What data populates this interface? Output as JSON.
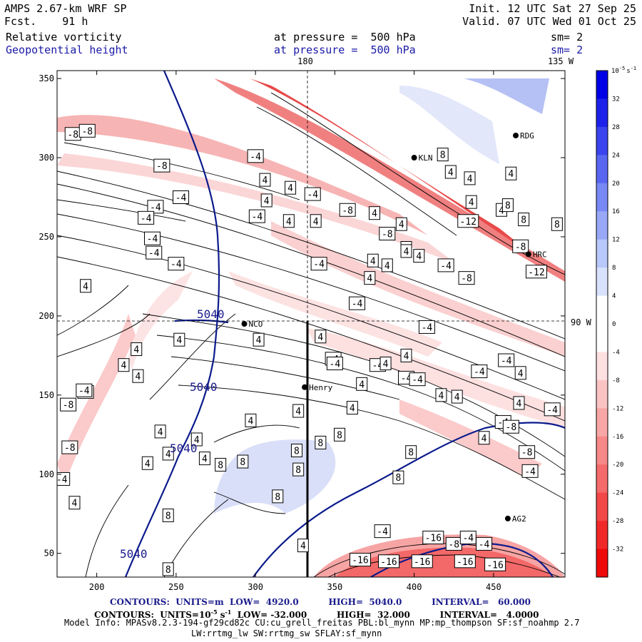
{
  "header": {
    "model": "AMPS 2.67-km WRF SP",
    "fcst_label": "Fcst.",
    "fcst_value": "91 h",
    "init": "Init. 12 UTC Sat 27 Sep 25",
    "valid": "Valid. 07 UTC Wed 01 Oct 25",
    "field1": "Relative vorticity",
    "field2": "Geopotential height",
    "pressure1": "at pressure =  500 hPa",
    "pressure2": "at pressure =  500 hPa",
    "sm1": "sm= 2",
    "sm2": "sm= 2",
    "lon_top1": "180",
    "lon_top2": "135 W",
    "lon_right": "90 W"
  },
  "footer": {
    "line1": "CONTOURS:  UNITS=m  LOW=  4920.0          HIGH=  5040.0          INTERVAL=   60.000",
    "line2": "CONTOURS:  UNITS=10",
    "line2_exp": "-5",
    "line2_s": " s",
    "line2_sexp": "-1",
    "line2_rest": "  LOW= -32.000          HIGH=  32.000          INTERVAL=   4.0000",
    "line3": "Model Info: MPASv8.2.3-194-gf29cd82c CU:cu_grell_freitas PBL:bl_mynn MP:mp_thompson SF:sf_noahmp 2.7",
    "line4": "LW:rrtmg_lw SW:rrtmg_sw SFLAY:sf_mynn"
  },
  "colorbar": {
    "unit_label": "10",
    "unit_exp": "-5",
    "unit_s": "s",
    "unit_sexp": "-1",
    "labels": [
      "32",
      "28",
      "24",
      "20",
      "16",
      "12",
      "8",
      "4",
      "0",
      "-4",
      "-8",
      "-12",
      "-16",
      "-20",
      "-24",
      "-28",
      "-32"
    ],
    "colors": [
      "#0000e6",
      "#1c22ea",
      "#3a44ee",
      "#5866f1",
      "#7888f4",
      "#98a8f7",
      "#b8c8fa",
      "#d8e2fc",
      "#ffffff",
      "#ffffff",
      "#fde0e0",
      "#fbc4c4",
      "#f9a6a6",
      "#f78888",
      "#f56a6a",
      "#f34848",
      "#f12828",
      "#ef0a0a"
    ]
  },
  "chart_data": {
    "type": "contour_map",
    "title": "Relative vorticity / Geopotential height at 500 hPa",
    "xlabel": "",
    "ylabel": "",
    "xlim": [
      175,
      495
    ],
    "ylim": [
      35,
      355
    ],
    "xticks": [
      200,
      250,
      300,
      350,
      400,
      450
    ],
    "yticks": [
      50,
      100,
      150,
      200,
      250,
      300,
      350
    ],
    "height_contour_labels": [
      "5040",
      "5040",
      "5040",
      "5040"
    ],
    "vorticity_labels": [
      {
        "x": 185,
        "y": 315,
        "t": "-8"
      },
      {
        "x": 194,
        "y": 317,
        "t": "-8"
      },
      {
        "x": 241,
        "y": 295,
        "t": "-8"
      },
      {
        "x": 253,
        "y": 275,
        "t": "-4"
      },
      {
        "x": 300,
        "y": 301,
        "t": "-4"
      },
      {
        "x": 306,
        "y": 286,
        "t": "4"
      },
      {
        "x": 307,
        "y": 273,
        "t": "4"
      },
      {
        "x": 301,
        "y": 263,
        "t": "-4"
      },
      {
        "x": 237,
        "y": 269,
        "t": "-4"
      },
      {
        "x": 231,
        "y": 262,
        "t": "-4"
      },
      {
        "x": 250,
        "y": 233,
        "t": "-4"
      },
      {
        "x": 193,
        "y": 219,
        "t": "4"
      },
      {
        "x": 235,
        "y": 249,
        "t": "-4"
      },
      {
        "x": 236,
        "y": 240,
        "t": "-4"
      },
      {
        "x": 322,
        "y": 281,
        "t": "4"
      },
      {
        "x": 321,
        "y": 260,
        "t": "4"
      },
      {
        "x": 336,
        "y": 277,
        "t": "-4"
      },
      {
        "x": 338,
        "y": 260,
        "t": "4"
      },
      {
        "x": 358,
        "y": 267,
        "t": "-8"
      },
      {
        "x": 375,
        "y": 265,
        "t": "4"
      },
      {
        "x": 392,
        "y": 258,
        "t": "4"
      },
      {
        "x": 383,
        "y": 252,
        "t": "-8"
      },
      {
        "x": 395,
        "y": 243,
        "t": "4"
      },
      {
        "x": 418,
        "y": 302,
        "t": "8"
      },
      {
        "x": 423,
        "y": 291,
        "t": "4"
      },
      {
        "x": 435,
        "y": 287,
        "t": "4"
      },
      {
        "x": 436,
        "y": 272,
        "t": "4"
      },
      {
        "x": 434,
        "y": 260,
        "t": "-12"
      },
      {
        "x": 455,
        "y": 267,
        "t": "4"
      },
      {
        "x": 459,
        "y": 270,
        "t": "8"
      },
      {
        "x": 461,
        "y": 290,
        "t": "4"
      },
      {
        "x": 469,
        "y": 261,
        "t": "8"
      },
      {
        "x": 490,
        "y": 258,
        "t": "8"
      },
      {
        "x": 467,
        "y": 244,
        "t": "-8"
      },
      {
        "x": 477,
        "y": 228,
        "t": "-12"
      },
      {
        "x": 420,
        "y": 232,
        "t": "-4"
      },
      {
        "x": 433,
        "y": 224,
        "t": "-8"
      },
      {
        "x": 340,
        "y": 233,
        "t": "-4"
      },
      {
        "x": 364,
        "y": 208,
        "t": "-4"
      },
      {
        "x": 374,
        "y": 235,
        "t": "4"
      },
      {
        "x": 372,
        "y": 224,
        "t": "4"
      },
      {
        "x": 383,
        "y": 232,
        "t": "4"
      },
      {
        "x": 395,
        "y": 241,
        "t": "4"
      },
      {
        "x": 403,
        "y": 238,
        "t": "4"
      },
      {
        "x": 408,
        "y": 193,
        "t": "-4"
      },
      {
        "x": 377,
        "y": 169,
        "t": "-4"
      },
      {
        "x": 395,
        "y": 161,
        "t": "-4"
      },
      {
        "x": 402,
        "y": 160,
        "t": "-4"
      },
      {
        "x": 395,
        "y": 175,
        "t": "4"
      },
      {
        "x": 349,
        "y": 173,
        "t": "-4"
      },
      {
        "x": 382,
        "y": 170,
        "t": "4"
      },
      {
        "x": 367,
        "y": 157,
        "t": "4"
      },
      {
        "x": 350,
        "y": 170,
        "t": "-4"
      },
      {
        "x": 341,
        "y": 120,
        "t": "8"
      },
      {
        "x": 302,
        "y": 185,
        "t": "4"
      },
      {
        "x": 297,
        "y": 134,
        "t": "4"
      },
      {
        "x": 327,
        "y": 140,
        "t": "4"
      },
      {
        "x": 341,
        "y": 187,
        "t": "4"
      },
      {
        "x": 361,
        "y": 142,
        "t": "4"
      },
      {
        "x": 353,
        "y": 125,
        "t": "8"
      },
      {
        "x": 417,
        "y": 150,
        "t": "4"
      },
      {
        "x": 441,
        "y": 165,
        "t": "-4"
      },
      {
        "x": 458,
        "y": 172,
        "t": "-4"
      },
      {
        "x": 467,
        "y": 164,
        "t": "4"
      },
      {
        "x": 427,
        "y": 149,
        "t": "4"
      },
      {
        "x": 456,
        "y": 133,
        "t": "-4"
      },
      {
        "x": 466,
        "y": 145,
        "t": "4"
      },
      {
        "x": 487,
        "y": 141,
        "t": "-4"
      },
      {
        "x": 461,
        "y": 130,
        "t": "-8"
      },
      {
        "x": 471,
        "y": 114,
        "t": "-8"
      },
      {
        "x": 473,
        "y": 102,
        "t": "-4"
      },
      {
        "x": 444,
        "y": 123,
        "t": "4"
      },
      {
        "x": 398,
        "y": 114,
        "t": "8"
      },
      {
        "x": 390,
        "y": 98,
        "t": "8"
      },
      {
        "x": 252,
        "y": 185,
        "t": "4"
      },
      {
        "x": 225,
        "y": 179,
        "t": "4"
      },
      {
        "x": 217,
        "y": 169,
        "t": "4"
      },
      {
        "x": 193,
        "y": 152,
        "t": "-4"
      },
      {
        "x": 182,
        "y": 144,
        "t": "-8"
      },
      {
        "x": 183,
        "y": 117,
        "t": "-8"
      },
      {
        "x": 192,
        "y": 153,
        "t": "-4"
      },
      {
        "x": 226,
        "y": 162,
        "t": "4"
      },
      {
        "x": 240,
        "y": 127,
        "t": "4"
      },
      {
        "x": 245,
        "y": 113,
        "t": "4"
      },
      {
        "x": 263,
        "y": 122,
        "t": "4"
      },
      {
        "x": 268,
        "y": 110,
        "t": "4"
      },
      {
        "x": 278,
        "y": 106,
        "t": "8"
      },
      {
        "x": 292,
        "y": 108,
        "t": "8"
      },
      {
        "x": 326,
        "y": 115,
        "t": "8"
      },
      {
        "x": 327,
        "y": 103,
        "t": "8"
      },
      {
        "x": 314,
        "y": 86,
        "t": "8"
      },
      {
        "x": 178,
        "y": 97,
        "t": "-4"
      },
      {
        "x": 186,
        "y": 82,
        "t": "4"
      },
      {
        "x": 232,
        "y": 107,
        "t": "4"
      },
      {
        "x": 245,
        "y": 74,
        "t": "8"
      },
      {
        "x": 245,
        "y": 40,
        "t": "8"
      },
      {
        "x": 330,
        "y": 55,
        "t": "4"
      },
      {
        "x": 366,
        "y": 46,
        "t": "-16"
      },
      {
        "x": 380,
        "y": 64,
        "t": "-4"
      },
      {
        "x": 384,
        "y": 45,
        "t": "-16"
      },
      {
        "x": 405,
        "y": 45,
        "t": "-16"
      },
      {
        "x": 412,
        "y": 60,
        "t": "-16"
      },
      {
        "x": 425,
        "y": 56,
        "t": "-8"
      },
      {
        "x": 434,
        "y": 60,
        "t": "-4"
      },
      {
        "x": 444,
        "y": 56,
        "t": "-4"
      },
      {
        "x": 451,
        "y": 43,
        "t": "-16"
      },
      {
        "x": 432,
        "y": 45,
        "t": "-16"
      }
    ],
    "stations": [
      {
        "name": "NCO",
        "x": 293,
        "y": 195
      },
      {
        "name": "Henry",
        "x": 331,
        "y": 155
      },
      {
        "name": "KLN",
        "x": 400,
        "y": 300
      },
      {
        "name": "RDG",
        "x": 464,
        "y": 314
      },
      {
        "name": "HRC",
        "x": 472,
        "y": 239
      },
      {
        "name": "AG2",
        "x": 459,
        "y": 72
      }
    ]
  }
}
